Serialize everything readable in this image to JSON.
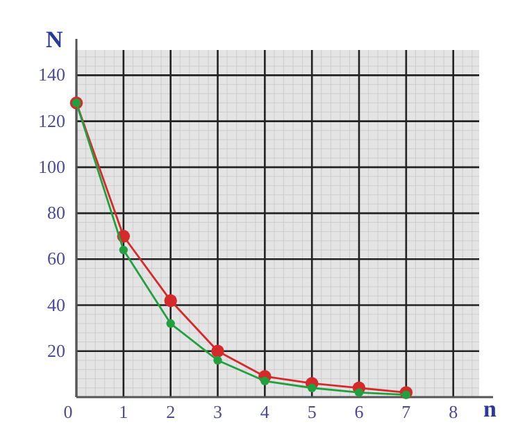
{
  "chart_data": {
    "type": "line",
    "xlabel": "n",
    "ylabel": "N",
    "x": [
      0,
      1,
      2,
      3,
      4,
      5,
      6,
      7
    ],
    "series": [
      {
        "color": "#d42a2a",
        "values": [
          128,
          70,
          42,
          20,
          9,
          6,
          4,
          2
        ]
      },
      {
        "color": "#22a040",
        "values": [
          128,
          64,
          32,
          16,
          7,
          4,
          2,
          1
        ]
      }
    ],
    "xlim": [
      0,
      8.55
    ],
    "ylim": [
      0,
      151
    ],
    "xticks": [
      0,
      1,
      2,
      3,
      4,
      5,
      6,
      7,
      8
    ],
    "yticks": [
      20,
      40,
      60,
      80,
      100,
      120,
      140
    ],
    "grid": true,
    "marker": "circle",
    "line_style": "solid"
  }
}
